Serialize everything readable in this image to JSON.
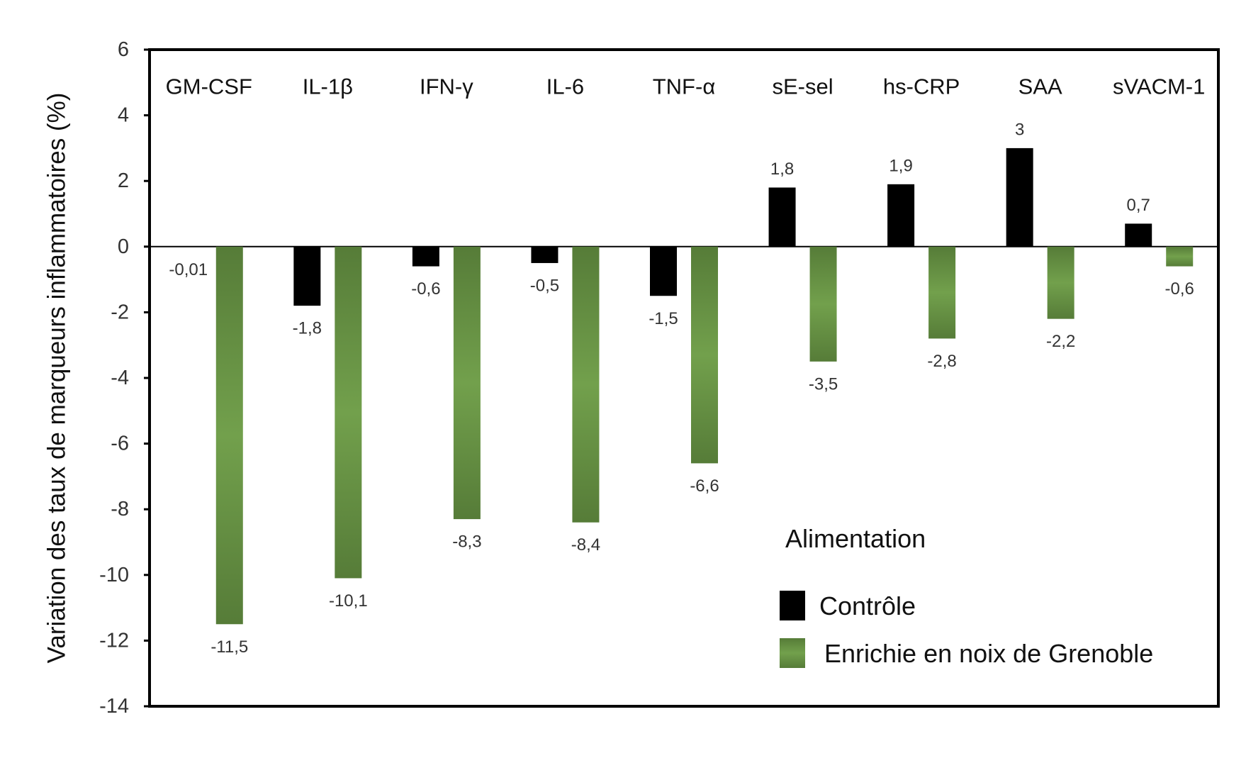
{
  "chart_data": {
    "type": "bar",
    "ylabel": "Variation des taux de marqueurs inflammatoires (%)",
    "ylim": [
      -14,
      6
    ],
    "yticks": [
      6,
      4,
      2,
      0,
      -2,
      -4,
      -6,
      -8,
      -10,
      -12,
      -14
    ],
    "categories": [
      "GM-CSF",
      "IL-1β",
      "IFN-γ",
      "IL-6",
      "TNF-α",
      "sE-sel",
      "hs-CRP",
      "SAA",
      "sVACM-1"
    ],
    "series": [
      {
        "name": "Contrôle",
        "color": "#000000",
        "values": [
          -0.01,
          -1.8,
          -0.6,
          -0.5,
          -1.5,
          1.8,
          1.9,
          3,
          0.7
        ],
        "labels": [
          "-0,01",
          "-1,8",
          "-0,6",
          "-0,5",
          "-1,5",
          "1,8",
          "1,9",
          "3",
          "0,7"
        ]
      },
      {
        "name": "Enrichie en noix de Grenoble",
        "color": "#6a9a48",
        "values": [
          -11.5,
          -10.1,
          -8.3,
          -8.4,
          -6.6,
          -3.5,
          -2.8,
          -2.2,
          -0.6
        ],
        "labels": [
          "-11,5",
          "-10,1",
          "-8,3",
          "-8,4",
          "-6,6",
          "-3,5",
          "-2,8",
          "-2,2",
          "-0,6"
        ]
      }
    ],
    "legend": {
      "title": "Alimentation",
      "placement": "bottom-right"
    }
  }
}
